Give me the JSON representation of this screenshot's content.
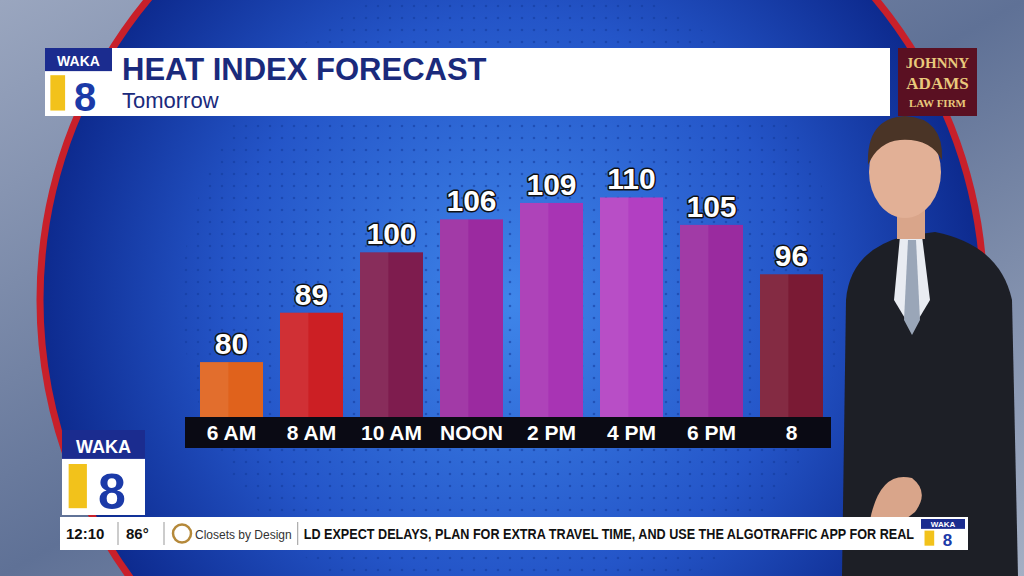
{
  "chart_data": {
    "type": "bar",
    "title": "HEAT INDEX FORECAST",
    "subtitle": "Tomorrow",
    "categories": [
      "6 AM",
      "8 AM",
      "10 AM",
      "NOON",
      "2 PM",
      "4 PM",
      "6 PM",
      "8"
    ],
    "values": [
      80,
      89,
      100,
      106,
      109,
      110,
      105,
      96
    ],
    "colors": [
      "#e0621c",
      "#cc1f24",
      "#7e1c4e",
      "#9b2aa0",
      "#a834b4",
      "#b23fc2",
      "#9a2b9f",
      "#7a1a34"
    ],
    "ylim": [
      70,
      115
    ],
    "data_labels": true,
    "tick_labels": "x",
    "grid": false
  },
  "station": {
    "logo": "WAKA",
    "channel": "8"
  },
  "sponsor": {
    "lines": [
      "JOHNNY",
      "ADAMS",
      "LAW FIRM"
    ]
  },
  "ticker": {
    "time": "12:10",
    "temperature": "86°",
    "advertiser": "Closets by Design",
    "text": "LD EXPECT DELAYS, PLAN FOR EXTRA TRAVEL TIME, AND USE THE ALGOTRAFFIC APP FOR REAL"
  }
}
